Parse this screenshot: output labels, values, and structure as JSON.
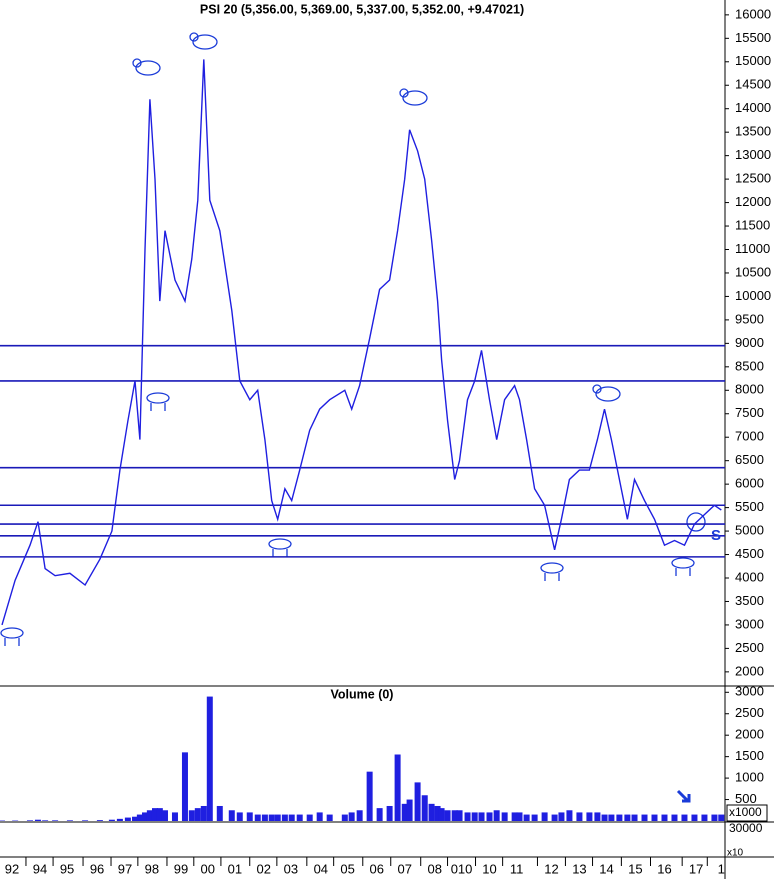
{
  "chart_data": [
    {
      "type": "line",
      "title": "PSI 20 (5,356.00, 5,369.00, 5,337.00, 5,352.00, +9.47021)",
      "color": "#1f1fe0",
      "x": [
        1992.67,
        1993.13,
        1993.65,
        1993.93,
        1994.18,
        1994.53,
        1995.05,
        1995.58,
        1996.1,
        1996.52,
        1996.8,
        1997.08,
        1997.33,
        1997.5,
        1997.68,
        1997.85,
        1998.03,
        1998.2,
        1998.38,
        1998.73,
        1999.08,
        1999.32,
        1999.53,
        1999.74,
        1999.95,
        2000.3,
        2000.72,
        2001.0,
        2001.35,
        2001.63,
        2001.88,
        2002.12,
        2002.33,
        2002.58,
        2002.82,
        2003.1,
        2003.45,
        2003.8,
        2004.15,
        2004.68,
        2004.92,
        2005.2,
        2005.55,
        2005.9,
        2006.25,
        2006.53,
        2006.78,
        2006.95,
        2007.23,
        2007.48,
        2007.72,
        2007.93,
        2008.07,
        2008.28,
        2008.53,
        2008.7,
        2008.98,
        2009.23,
        2009.47,
        2009.75,
        2010.0,
        2010.28,
        2010.63,
        2010.8,
        2011.05,
        2011.33,
        2011.68,
        2012.03,
        2012.27,
        2012.55,
        2012.9,
        2013.25,
        2013.53,
        2013.78,
        2014.02,
        2014.3,
        2014.58,
        2014.83,
        2015.18,
        2015.53,
        2015.88,
        2016.23,
        2016.58,
        2016.93,
        2017.28,
        2017.63,
        2017.87
      ],
      "values": [
        3000,
        3950,
        4700,
        5200,
        4200,
        4050,
        4100,
        3850,
        4400,
        5000,
        6300,
        7350,
        8200,
        6950,
        11000,
        14200,
        12500,
        9900,
        11400,
        10350,
        9900,
        10800,
        12050,
        15050,
        12050,
        11400,
        9700,
        8200,
        7800,
        8000,
        6950,
        5650,
        5250,
        5900,
        5650,
        6300,
        7150,
        7600,
        7800,
        8000,
        7600,
        8100,
        9100,
        10150,
        10350,
        11400,
        12500,
        13550,
        13100,
        12500,
        11200,
        9900,
        8650,
        7350,
        6100,
        6500,
        7800,
        8200,
        8850,
        7800,
        6950,
        7800,
        8100,
        7800,
        6950,
        5900,
        5550,
        4600,
        5250,
        6100,
        6300,
        6300,
        6950,
        7600,
        6950,
        6100,
        5250,
        6100,
        5650,
        5250,
        4700,
        4800,
        4700,
        5150,
        5350,
        5550,
        5450
      ],
      "hlines": [
        8950,
        8200,
        6350,
        5550,
        5150,
        4900,
        4450
      ],
      "hline_color": "#1a1ab8",
      "annotations": [
        "S"
      ],
      "xlim": [
        1992.6,
        2018.0
      ],
      "ylim": [
        1720,
        16210
      ],
      "yticks": [
        2000,
        2500,
        3000,
        3500,
        4000,
        4500,
        5000,
        5500,
        6000,
        6500,
        7000,
        7500,
        8000,
        8500,
        9000,
        9500,
        10000,
        10500,
        11000,
        11500,
        12000,
        12500,
        13000,
        13500,
        14000,
        14500,
        15000,
        15500,
        16000
      ]
    },
    {
      "type": "bar",
      "title": "Volume (0)",
      "color": "#1f1fe0",
      "x": [
        1992.67,
        1993.13,
        1993.65,
        1993.93,
        1994.18,
        1994.53,
        1995.05,
        1995.58,
        1996.1,
        1996.52,
        1996.8,
        1997.08,
        1997.33,
        1997.5,
        1997.68,
        1997.85,
        1998.03,
        1998.2,
        1998.38,
        1998.73,
        1999.08,
        1999.32,
        1999.53,
        1999.74,
        1999.95,
        2000.3,
        2000.72,
        2001.0,
        2001.35,
        2001.63,
        2001.88,
        2002.12,
        2002.33,
        2002.58,
        2002.82,
        2003.1,
        2003.45,
        2003.8,
        2004.15,
        2004.68,
        2004.92,
        2005.2,
        2005.55,
        2005.9,
        2006.25,
        2006.53,
        2006.78,
        2006.95,
        2007.23,
        2007.48,
        2007.72,
        2007.93,
        2008.07,
        2008.28,
        2008.53,
        2008.7,
        2008.98,
        2009.23,
        2009.47,
        2009.75,
        2010.0,
        2010.28,
        2010.63,
        2010.8,
        2011.05,
        2011.33,
        2011.68,
        2012.03,
        2012.27,
        2012.55,
        2012.9,
        2013.25,
        2013.53,
        2013.78,
        2014.02,
        2014.3,
        2014.58,
        2014.83,
        2015.18,
        2015.53,
        2015.88,
        2016.23,
        2016.58,
        2016.93,
        2017.28,
        2017.63,
        2017.87
      ],
      "values": [
        10,
        10,
        15,
        30,
        15,
        15,
        15,
        15,
        20,
        30,
        50,
        80,
        100,
        150,
        200,
        250,
        300,
        300,
        250,
        200,
        1600,
        250,
        300,
        350,
        2900,
        350,
        250,
        200,
        200,
        150,
        150,
        150,
        150,
        150,
        150,
        150,
        150,
        200,
        150,
        150,
        200,
        250,
        1150,
        300,
        350,
        1550,
        400,
        500,
        900,
        600,
        400,
        350,
        300,
        250,
        250,
        250,
        200,
        200,
        200,
        200,
        250,
        200,
        200,
        200,
        150,
        150,
        200,
        150,
        200,
        250,
        200,
        200,
        200,
        150,
        150,
        150,
        150,
        150,
        150,
        150,
        150,
        150,
        150,
        150,
        150,
        150,
        150
      ],
      "axis_notes": [
        "x1000",
        "30000",
        "x10"
      ],
      "xlim": [
        1992.6,
        2018.0
      ],
      "ylim": [
        0,
        3100
      ],
      "yticks": [
        500,
        1000,
        1500,
        2000,
        2500,
        3000
      ],
      "xticks": [
        {
          "value": 1993.02,
          "label": "92"
        },
        {
          "value": 1994.0,
          "label": "94"
        },
        {
          "value": 1994.95,
          "label": "95"
        },
        {
          "value": 1996.0,
          "label": "96"
        },
        {
          "value": 1996.98,
          "label": "97"
        },
        {
          "value": 1997.92,
          "label": "98"
        },
        {
          "value": 1998.94,
          "label": "99"
        },
        {
          "value": 1999.88,
          "label": "00"
        },
        {
          "value": 2000.83,
          "label": "01"
        },
        {
          "value": 2001.84,
          "label": "02"
        },
        {
          "value": 2002.79,
          "label": "03"
        },
        {
          "value": 2003.84,
          "label": "04"
        },
        {
          "value": 2004.78,
          "label": "05"
        },
        {
          "value": 2005.8,
          "label": "06"
        },
        {
          "value": 2006.78,
          "label": "07"
        },
        {
          "value": 2007.83,
          "label": "08"
        },
        {
          "value": 2008.77,
          "label": "010"
        },
        {
          "value": 2009.75,
          "label": "10"
        },
        {
          "value": 2010.7,
          "label": "11"
        },
        {
          "value": 2011.92,
          "label": "12"
        },
        {
          "value": 2012.9,
          "label": "13"
        },
        {
          "value": 2013.85,
          "label": "14"
        },
        {
          "value": 2014.86,
          "label": "15"
        },
        {
          "value": 2015.88,
          "label": "16"
        },
        {
          "value": 2016.99,
          "label": "17"
        },
        {
          "value": 2017.87,
          "label": "1"
        }
      ]
    }
  ]
}
